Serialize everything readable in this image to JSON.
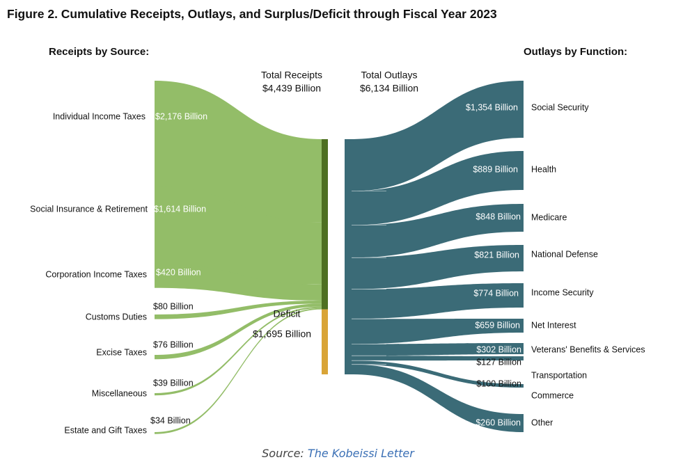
{
  "title": "Figure 2. Cumulative Receipts, Outlays, and Surplus/Deficit through Fiscal Year 2023",
  "receipts_heading": "Receipts by Source:",
  "outlays_heading": "Outlays by Function:",
  "source": {
    "prefix": "Source:",
    "link": "The Kobeissi Letter"
  },
  "colors": {
    "receipts": "#93bd68",
    "receipts_bar": "#4e7022",
    "deficit": "#d9a437",
    "outlays": "#3b6b77"
  },
  "chart_data": {
    "type": "sankey",
    "units": "Billion",
    "total_receipts": {
      "label": "Total Receipts",
      "value_label": "$4,439 Billion",
      "value": 4439
    },
    "total_outlays": {
      "label": "Total Outlays",
      "value_label": "$6,134 Billion",
      "value": 6134
    },
    "deficit": {
      "label": "Deficit",
      "value_label": "$1,695 Billion",
      "value": 1695
    },
    "receipts": [
      {
        "name": "Individual Income Taxes",
        "value": 2176,
        "value_label": "$2,176 Billion"
      },
      {
        "name": "Social Insurance & Retirement",
        "value": 1614,
        "value_label": "$1,614 Billion"
      },
      {
        "name": "Corporation Income Taxes",
        "value": 420,
        "value_label": "$420 Billion"
      },
      {
        "name": "Customs Duties",
        "value": 80,
        "value_label": "$80 Billion"
      },
      {
        "name": "Excise Taxes",
        "value": 76,
        "value_label": "$76 Billion"
      },
      {
        "name": "Miscellaneous",
        "value": 39,
        "value_label": "$39 Billion"
      },
      {
        "name": "Estate and Gift Taxes",
        "value": 34,
        "value_label": "$34 Billion"
      }
    ],
    "outlays": [
      {
        "name": "Social Security",
        "value": 1354,
        "value_label": "$1,354 Billion"
      },
      {
        "name": "Health",
        "value": 889,
        "value_label": "$889 Billion"
      },
      {
        "name": "Medicare",
        "value": 848,
        "value_label": "$848 Billion"
      },
      {
        "name": "National Defense",
        "value": 821,
        "value_label": "$821 Billion"
      },
      {
        "name": "Income Security",
        "value": 774,
        "value_label": "$774 Billion"
      },
      {
        "name": "Net Interest",
        "value": 659,
        "value_label": "$659 Billion"
      },
      {
        "name": "Veterans' Benefits & Services",
        "value": 302,
        "value_label": "$302 Billion"
      },
      {
        "name": "Transportation",
        "value": 127,
        "value_label": "$127 Billion"
      },
      {
        "name": "Commerce",
        "value": 100,
        "value_label": "$100 Billion"
      },
      {
        "name": "Other",
        "value": 260,
        "value_label": "$260 Billion"
      }
    ]
  }
}
